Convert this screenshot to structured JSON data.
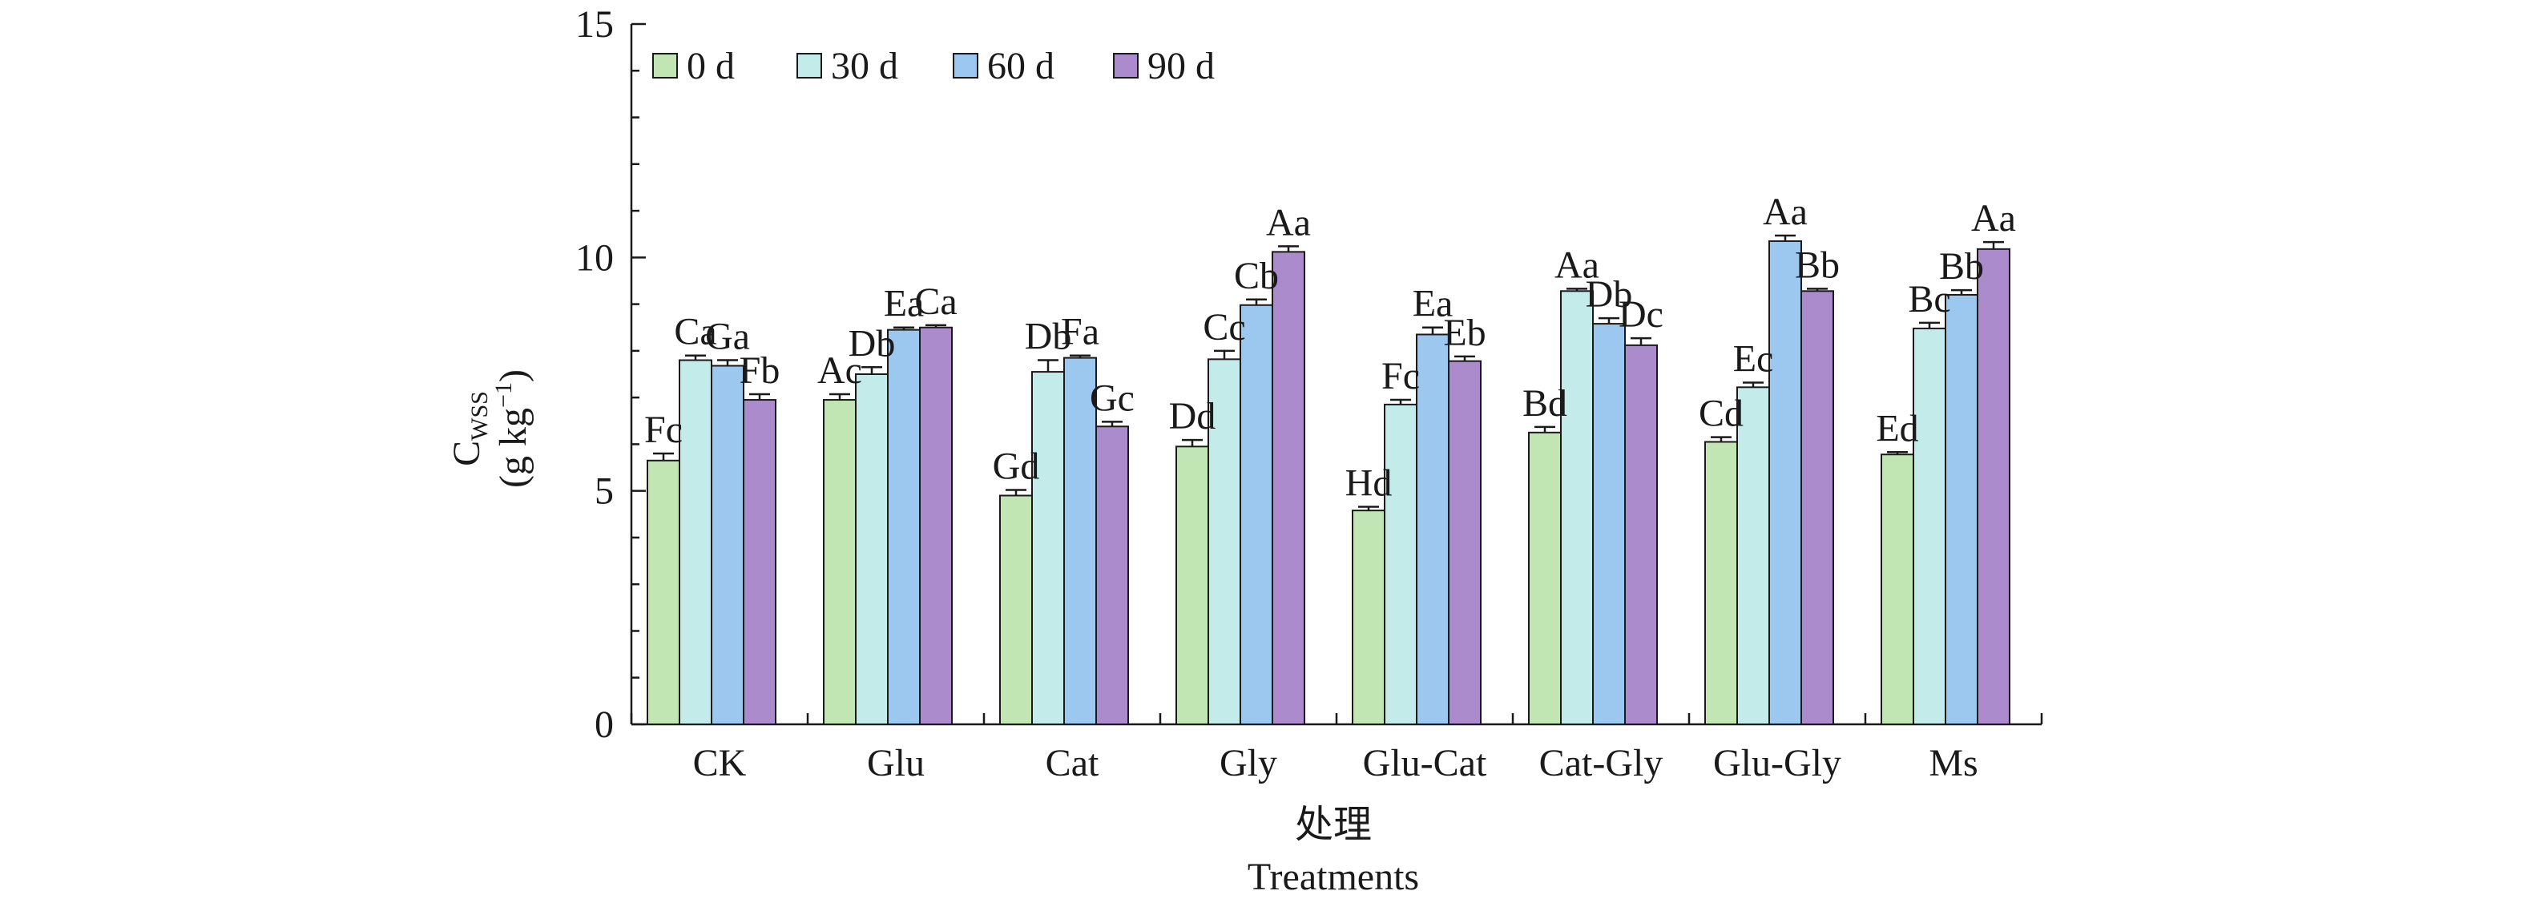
{
  "chart_data": {
    "type": "bar",
    "title": "",
    "xlabel_zh": "处理",
    "xlabel_en": "Treatments",
    "ylabel_main": "C",
    "ylabel_sub": "WSS",
    "ylabel_unit_prefix": "(g kg",
    "ylabel_unit_sup": "−1",
    "ylabel_unit_suffix": ")",
    "ylim": [
      0,
      15
    ],
    "yticks": [
      0,
      5,
      10,
      15
    ],
    "grid": false,
    "legend_position": "top-left",
    "categories": [
      "CK",
      "Glu",
      "Cat",
      "Gly",
      "Glu-Cat",
      "Cat-Gly",
      "Glu-Gly",
      "Ms"
    ],
    "series": [
      {
        "name": "0 d",
        "color": "#c1e6b3",
        "values": [
          5.65,
          6.95,
          4.9,
          5.95,
          4.58,
          6.25,
          6.05,
          5.78
        ],
        "errors": [
          0.15,
          0.12,
          0.12,
          0.14,
          0.08,
          0.12,
          0.1,
          0.05
        ],
        "labels": [
          "Fc",
          "Ac",
          "Gd",
          "Dd",
          "Hd",
          "Bd",
          "Cd",
          "Ed"
        ]
      },
      {
        "name": "30 d",
        "color": "#c3ebea",
        "values": [
          7.8,
          7.5,
          7.55,
          7.82,
          6.85,
          9.28,
          7.22,
          8.48
        ],
        "errors": [
          0.1,
          0.15,
          0.25,
          0.18,
          0.1,
          0.05,
          0.1,
          0.12
        ],
        "labels": [
          "Ca",
          "Db",
          "Db",
          "Cc",
          "Fc",
          "Aa",
          "Ec",
          "Bc"
        ]
      },
      {
        "name": "60 d",
        "color": "#9cc8ef",
        "values": [
          7.68,
          8.45,
          7.85,
          8.98,
          8.35,
          8.58,
          10.35,
          9.2
        ],
        "errors": [
          0.12,
          0.05,
          0.05,
          0.12,
          0.15,
          0.12,
          0.12,
          0.1
        ],
        "labels": [
          "Ga",
          "Ea",
          "Fa",
          "Cb",
          "Ea",
          "Db",
          "Aa",
          "Bb"
        ]
      },
      {
        "name": "90 d",
        "color": "#ac8bcc",
        "values": [
          6.95,
          8.5,
          6.38,
          10.12,
          7.78,
          8.12,
          9.28,
          10.18
        ],
        "errors": [
          0.12,
          0.05,
          0.1,
          0.12,
          0.1,
          0.15,
          0.05,
          0.15
        ],
        "labels": [
          "Fb",
          "Ca",
          "Gc",
          "Aa",
          "Eb",
          "Dc",
          "Bb",
          "Aa"
        ]
      }
    ]
  }
}
